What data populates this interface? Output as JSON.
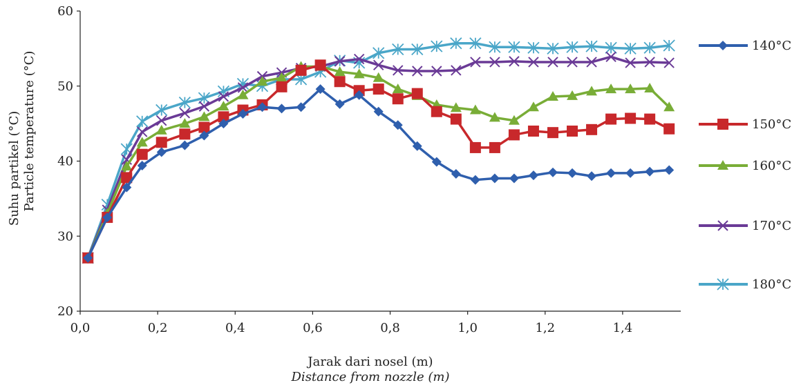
{
  "chart_data": {
    "type": "line",
    "ylabel_lines": [
      "Suhu partikel (°C)",
      "Particle temperature (°C)"
    ],
    "xlabel_lines": [
      "Jarak dari nosel (m)",
      "Distance from nozzle (m)"
    ],
    "xlim": [
      0.0,
      1.55
    ],
    "ylim": [
      20,
      60
    ],
    "x_ticks": [
      0.0,
      0.2,
      0.4,
      0.6,
      0.8,
      1.0,
      1.2,
      1.4
    ],
    "x_tick_labels": [
      "0,0",
      "0,2",
      "0,4",
      "0,6",
      "0,8",
      "1,0",
      "1,2",
      "1,4"
    ],
    "y_ticks": [
      20,
      30,
      40,
      50,
      60
    ],
    "y_tick_labels": [
      "20",
      "30",
      "40",
      "50",
      "60"
    ],
    "grid": false,
    "legend_position": "right",
    "x": [
      0.02,
      0.07,
      0.12,
      0.16,
      0.21,
      0.27,
      0.32,
      0.37,
      0.42,
      0.47,
      0.52,
      0.57,
      0.62,
      0.67,
      0.72,
      0.77,
      0.82,
      0.87,
      0.92,
      0.97,
      1.02,
      1.07,
      1.12,
      1.17,
      1.22,
      1.27,
      1.32,
      1.37,
      1.42,
      1.47,
      1.52
    ],
    "series": [
      {
        "name": "140°C",
        "color": "#2f5fad",
        "marker": "diamond",
        "values": [
          27.1,
          32.5,
          36.5,
          39.4,
          41.2,
          42.1,
          43.4,
          45.0,
          46.3,
          47.2,
          47.0,
          47.2,
          49.6,
          47.6,
          48.8,
          46.6,
          44.8,
          42.0,
          39.9,
          38.3,
          37.5,
          37.7,
          37.7,
          38.1,
          38.5,
          38.4,
          38.0,
          38.4,
          38.4,
          38.6,
          38.8
        ]
      },
      {
        "name": "150°C",
        "color": "#c8282b",
        "marker": "square",
        "values": [
          27.1,
          32.5,
          37.8,
          40.9,
          42.5,
          43.6,
          44.5,
          45.9,
          46.8,
          47.5,
          49.9,
          52.1,
          52.8,
          50.6,
          49.4,
          49.6,
          48.3,
          49.0,
          46.6,
          45.6,
          41.8,
          41.8,
          43.5,
          44.0,
          43.8,
          44.0,
          44.2,
          45.6,
          45.7,
          45.6,
          44.3
        ]
      },
      {
        "name": "160°C",
        "color": "#79ad37",
        "marker": "triangle",
        "values": [
          27.1,
          33.0,
          39.3,
          42.5,
          44.1,
          45.0,
          45.9,
          47.3,
          48.8,
          50.6,
          51.1,
          52.6,
          52.6,
          51.9,
          51.6,
          51.1,
          49.6,
          48.7,
          47.5,
          47.1,
          46.8,
          45.8,
          45.4,
          47.2,
          48.6,
          48.7,
          49.3,
          49.6,
          49.6,
          49.7,
          47.2
        ]
      },
      {
        "name": "170°C",
        "color": "#6a3a96",
        "marker": "cross",
        "values": [
          27.1,
          33.5,
          40.2,
          43.9,
          45.4,
          46.4,
          47.3,
          48.6,
          49.8,
          51.3,
          51.8,
          52.4,
          52.6,
          53.3,
          53.6,
          52.8,
          52.1,
          52.0,
          52.0,
          52.1,
          53.2,
          53.2,
          53.3,
          53.2,
          53.2,
          53.2,
          53.2,
          53.9,
          53.1,
          53.2,
          53.1
        ]
      },
      {
        "name": "180°C",
        "color": "#4aa6c8",
        "marker": "asterisk",
        "values": [
          27.1,
          34.2,
          41.6,
          45.3,
          46.8,
          47.8,
          48.4,
          49.3,
          50.3,
          50.0,
          50.9,
          50.9,
          51.9,
          53.4,
          53.1,
          54.4,
          54.9,
          54.9,
          55.3,
          55.7,
          55.7,
          55.2,
          55.2,
          55.1,
          55.0,
          55.2,
          55.3,
          55.1,
          55.0,
          55.1,
          55.4
        ]
      }
    ]
  }
}
